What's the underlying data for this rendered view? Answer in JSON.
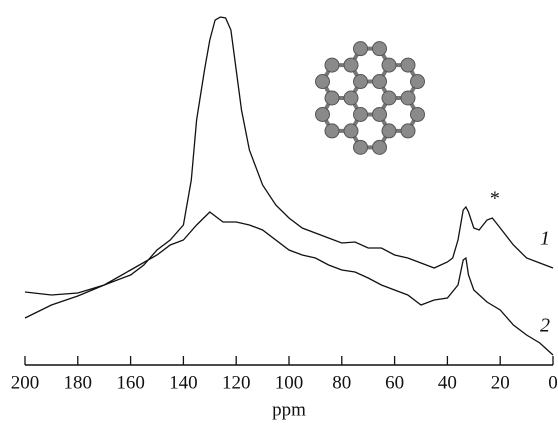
{
  "chart_data": {
    "type": "line",
    "x_label": "ppm",
    "xlim": [
      200,
      0
    ],
    "xticks": [
      200,
      180,
      160,
      140,
      120,
      100,
      80,
      60,
      40,
      20,
      0
    ],
    "ylim": [
      0,
      360
    ],
    "annotation": "*",
    "series": [
      {
        "name": "1",
        "color": "#111111",
        "x": [
          200,
          190,
          180,
          170,
          160,
          155,
          150,
          145,
          140,
          137,
          135,
          132,
          130,
          128,
          126,
          124,
          122,
          120,
          118,
          115,
          110,
          105,
          100,
          95,
          90,
          85,
          80,
          75,
          70,
          65,
          60,
          55,
          50,
          45,
          40,
          38,
          36,
          34,
          33,
          32,
          30,
          28,
          25,
          23,
          20,
          15,
          10,
          5,
          0
        ],
        "values": [
          73,
          70,
          72,
          80,
          90,
          100,
          115,
          125,
          140,
          185,
          245,
          295,
          325,
          345,
          348,
          347,
          335,
          295,
          255,
          215,
          180,
          160,
          147,
          137,
          132,
          127,
          122,
          123,
          117,
          117,
          110,
          107,
          102,
          97,
          103,
          107,
          125,
          155,
          158,
          153,
          137,
          135,
          145,
          147,
          137,
          120,
          107,
          102,
          97
        ]
      },
      {
        "name": "2",
        "color": "#111111",
        "x": [
          200,
          190,
          180,
          170,
          160,
          150,
          145,
          140,
          135,
          130,
          127,
          125,
          120,
          115,
          110,
          100,
          95,
          90,
          85,
          80,
          75,
          70,
          65,
          60,
          55,
          50,
          45,
          40,
          36,
          34,
          33,
          32,
          30,
          25,
          20,
          15,
          10,
          5,
          0
        ],
        "values": [
          47,
          60,
          69,
          80,
          95,
          110,
          120,
          125,
          140,
          153,
          147,
          143,
          143,
          140,
          135,
          115,
          110,
          107,
          100,
          95,
          93,
          87,
          80,
          75,
          70,
          60,
          65,
          67,
          80,
          105,
          107,
          90,
          75,
          63,
          55,
          40,
          30,
          22,
          10
        ]
      }
    ]
  }
}
